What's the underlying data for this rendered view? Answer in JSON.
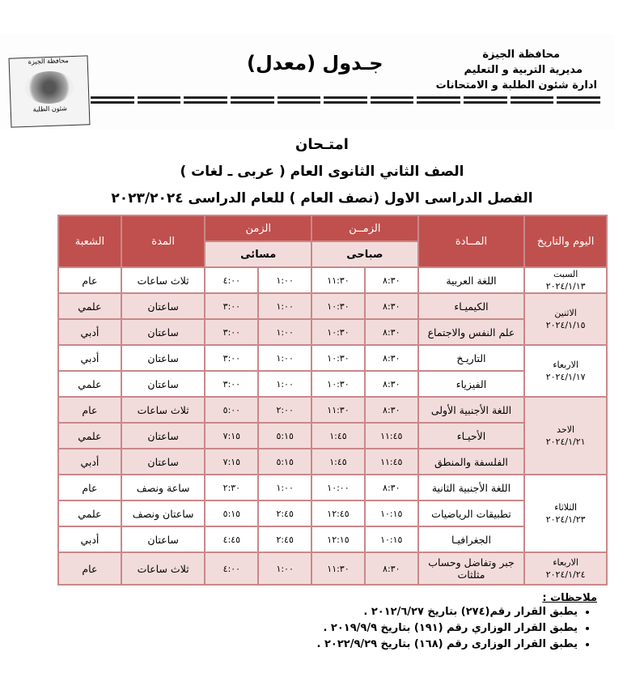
{
  "header": {
    "logo_text_top": "محافظة الجيزة",
    "logo_text_bottom": "شئون الطلبة",
    "title": "جـدول (معدل)",
    "governorate": "محافظة الجيزة",
    "directorate": "مديرية التربية و التعليم",
    "department": "ادارة شئون الطلبة و الامتحانات"
  },
  "headings": {
    "exam": "امتـحان",
    "grade": "الصف الثاني الثانوى العام ( عربى ـ لغات )",
    "term": "الفصل الدراسى الاول (نصف العام ) للعام الدراسى ٢٠٢٣/٢٠٢٤"
  },
  "table": {
    "headers": {
      "day": "اليوم والتاريخ",
      "subject": "المــادة",
      "time_morning": "الزمــن",
      "time_evening": "الزمن",
      "duration": "المدة",
      "branch": "الشعبة",
      "morning": "صباحى",
      "evening": "مسائى"
    },
    "groups": [
      {
        "day": "السبت",
        "date": "٢٠٢٤/١/١٣",
        "rows": [
          [
            "اللغة العربية",
            "٨:٣٠",
            "١١:٣٠",
            "١:٠٠",
            "٤:٠٠",
            "ثلاث ساعات",
            "عام"
          ]
        ]
      },
      {
        "day": "الاثنين",
        "date": "٢٠٢٤/١/١٥",
        "rows": [
          [
            "الكيميـاء",
            "٨:٣٠",
            "١٠:٣٠",
            "١:٠٠",
            "٣:٠٠",
            "ساعتان",
            "علمي"
          ],
          [
            "علم النفس والاجتماع",
            "٨:٣٠",
            "١٠:٣٠",
            "١:٠٠",
            "٣:٠٠",
            "ساعتان",
            "أدبي"
          ]
        ]
      },
      {
        "day": "الاربعاء",
        "date": "٢٠٢٤/١/١٧",
        "rows": [
          [
            "التاريـخ",
            "٨:٣٠",
            "١٠:٣٠",
            "١:٠٠",
            "٣:٠٠",
            "ساعتان",
            "أدبي"
          ],
          [
            "الفيزياء",
            "٨:٣٠",
            "١٠:٣٠",
            "١:٠٠",
            "٣:٠٠",
            "ساعتان",
            "علمي"
          ]
        ]
      },
      {
        "day": "الاحد",
        "date": "٢٠٢٤/١/٢١",
        "rows": [
          [
            "اللغة الأجنبية الأولى",
            "٨:٣٠",
            "١١:٣٠",
            "٢:٠٠",
            "٥:٠٠",
            "ثلاث ساعات",
            "عام"
          ],
          [
            "الأحيـاء",
            "١١:٤٥",
            "١:٤٥",
            "٥:١٥",
            "٧:١٥",
            "ساعتان",
            "علمي"
          ],
          [
            "الفلسفة والمنطق",
            "١١:٤٥",
            "١:٤٥",
            "٥:١٥",
            "٧:١٥",
            "ساعتان",
            "أدبي"
          ]
        ]
      },
      {
        "day": "الثلاثاء",
        "date": "٢٠٢٤/١/٢٣",
        "rows": [
          [
            "اللغة الأجنبية الثانية",
            "٨:٣٠",
            "١٠:٠٠",
            "١:٠٠",
            "٢:٣٠",
            "ساعة ونصف",
            "عام"
          ],
          [
            "تطبيقات الرياضيات",
            "١٠:١٥",
            "١٢:٤٥",
            "٢:٤٥",
            "٥:١٥",
            "ساعتان ونصف",
            "علمي"
          ],
          [
            "الجغرافيـا",
            "١٠:١٥",
            "١٢:١٥",
            "٢:٤٥",
            "٤:٤٥",
            "ساعتان",
            "أدبي"
          ]
        ]
      },
      {
        "day": "الاربعاء",
        "date": "٢٠٢٤/١/٢٤",
        "rows": [
          [
            "جبر وتفاضل وحساب مثلثات",
            "٨:٣٠",
            "١١:٣٠",
            "١:٠٠",
            "٤:٠٠",
            "ثلاث ساعات",
            "عام"
          ]
        ]
      }
    ]
  },
  "notes": {
    "title": "ملاحظات :",
    "items": [
      "يطبق القرار رقم(٢٧٤) بتاريخ ٢٠١٢/٦/٢٧ .",
      "يطبق القرار الوزاري رقم (١٩١) بتاريخ ٢٠١٩/٩/٩ .",
      "يطبق القرار الوزارى رقم (١٦٨) بتاريخ ٢٠٢٢/٩/٢٩ ."
    ]
  },
  "colors": {
    "header_red": "#c0504d",
    "row_pink": "#f2dcdb",
    "border": "#c9888a"
  }
}
